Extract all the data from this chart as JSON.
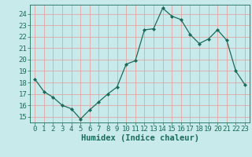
{
  "x": [
    0,
    1,
    2,
    3,
    4,
    5,
    6,
    7,
    8,
    9,
    10,
    11,
    12,
    13,
    14,
    15,
    16,
    17,
    18,
    19,
    20,
    21,
    22,
    23
  ],
  "y": [
    18.3,
    17.2,
    16.7,
    16.0,
    15.7,
    14.8,
    15.6,
    16.3,
    17.0,
    17.6,
    19.6,
    19.9,
    22.6,
    22.7,
    24.5,
    23.8,
    23.5,
    22.2,
    21.4,
    21.8,
    22.6,
    21.7,
    19.0,
    17.8
  ],
  "line_color": "#1a6b5a",
  "marker": "D",
  "marker_size": 2.0,
  "bg_color": "#c8eaea",
  "grid_color": "#e89898",
  "xlabel": "Humidex (Indice chaleur)",
  "ylim": [
    14.5,
    24.8
  ],
  "xlim": [
    -0.5,
    23.5
  ],
  "yticks": [
    15,
    16,
    17,
    18,
    19,
    20,
    21,
    22,
    23,
    24
  ],
  "xticks": [
    0,
    1,
    2,
    3,
    4,
    5,
    6,
    7,
    8,
    9,
    10,
    11,
    12,
    13,
    14,
    15,
    16,
    17,
    18,
    19,
    20,
    21,
    22,
    23
  ],
  "font_color": "#1a6b5a",
  "tick_font_size": 6.5,
  "label_font_size": 7.5
}
